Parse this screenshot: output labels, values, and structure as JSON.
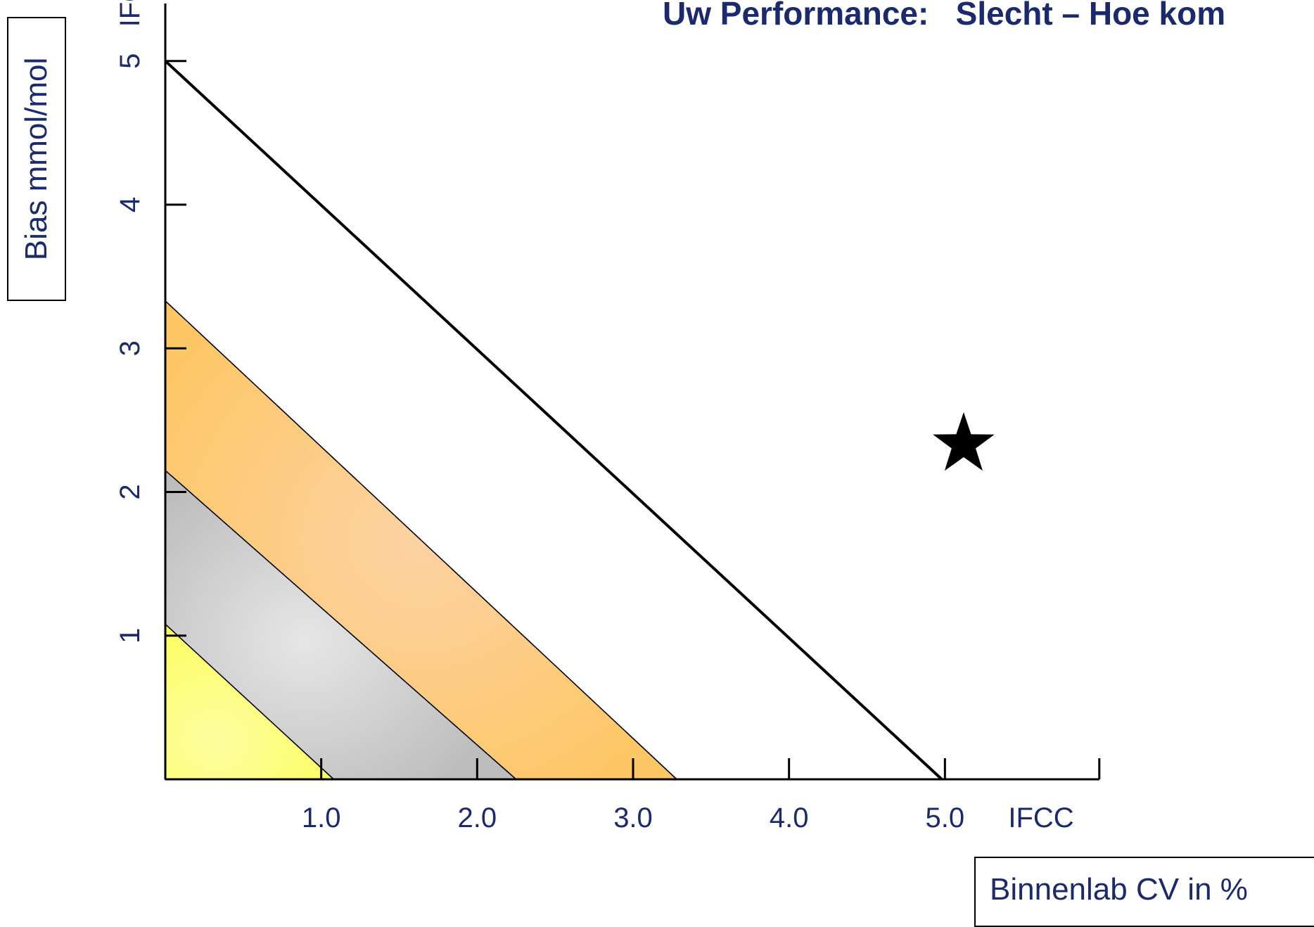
{
  "chart_data": {
    "type": "area",
    "title": "Uw Performance:   Slecht – Hoe kom",
    "xlabel": "Binnenlab CV in %",
    "ylabel": "Bias mmol/mol",
    "x_unit_label": "IFCC",
    "y_unit_label": "IFCC",
    "xlim": [
      0,
      6.0
    ],
    "ylim": [
      0,
      5.4
    ],
    "x_ticks": [
      1.0,
      2.0,
      3.0,
      4.0,
      5.0
    ],
    "x_tick_labels": [
      "1.0",
      "2.0",
      "3.0",
      "4.0",
      "5.0"
    ],
    "y_ticks": [
      1,
      2,
      3,
      4,
      5
    ],
    "y_tick_labels": [
      "1",
      "2",
      "3",
      "4",
      "5"
    ],
    "zones": [
      {
        "color_fill": "#fdfd6a",
        "y_intercept": 1.08,
        "x_intercept": 1.08
      },
      {
        "color_fill": "#d0d0d0",
        "y_intercept": 2.15,
        "x_intercept": 2.25
      },
      {
        "color_fill": "#fdc97e",
        "y_intercept": 3.33,
        "x_intercept": 3.28
      }
    ],
    "limit_line": {
      "y_intercept": 5.0,
      "x_intercept": 4.98
    },
    "point": {
      "x": 5.12,
      "y": 2.35,
      "marker": "star"
    }
  },
  "colors": {
    "text": "#1a2a6c",
    "axis": "#000000",
    "yellow": "#fdfd6a",
    "gray": "#d0d0d0",
    "orange": "#fdc97e"
  }
}
